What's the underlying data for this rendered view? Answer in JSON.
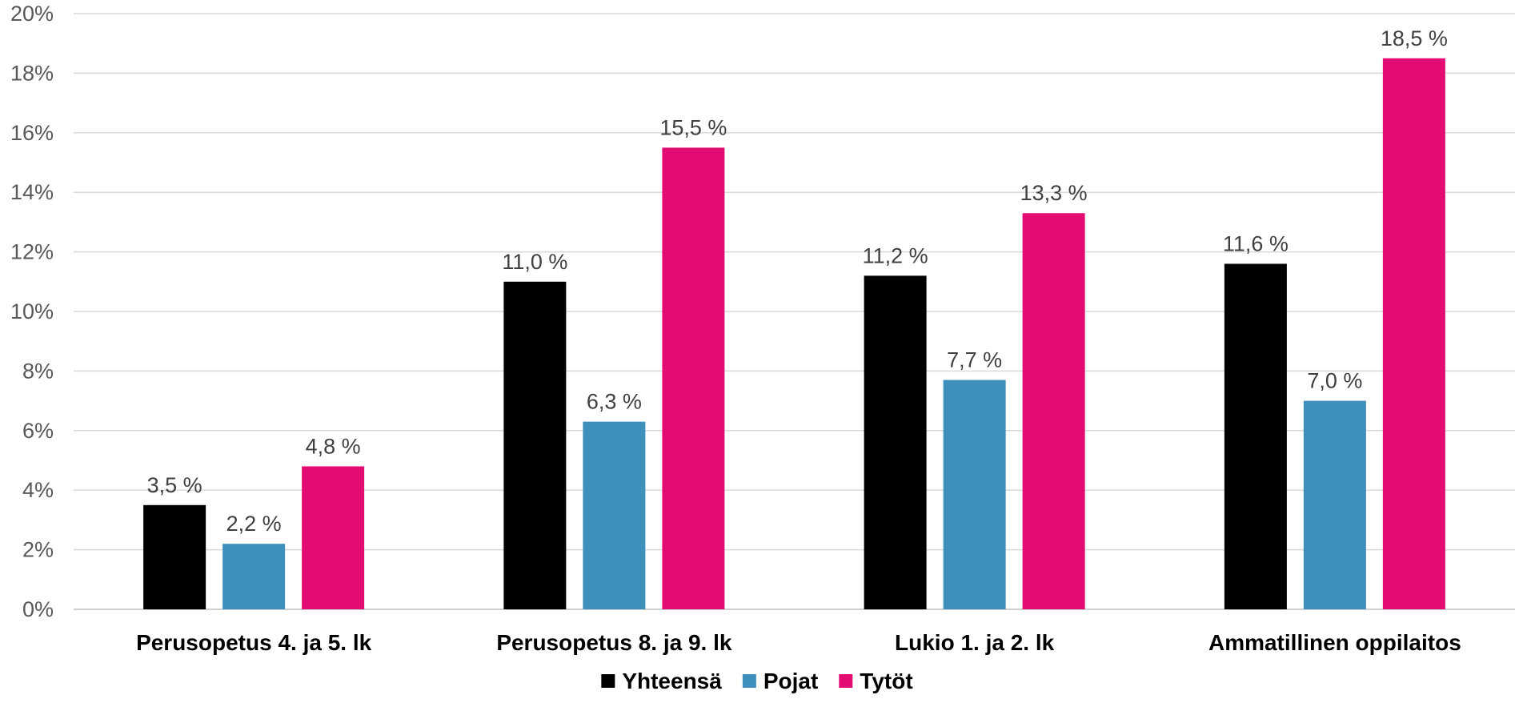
{
  "chart_data": {
    "type": "bar",
    "title": "",
    "xlabel": "",
    "ylabel": "",
    "ylim": [
      0,
      20
    ],
    "y_ticks": [
      "0%",
      "2%",
      "4%",
      "6%",
      "8%",
      "10%",
      "12%",
      "14%",
      "16%",
      "18%",
      "20%"
    ],
    "y_tick_values": [
      0,
      2,
      4,
      6,
      8,
      10,
      12,
      14,
      16,
      18,
      20
    ],
    "grid": true,
    "legend_position": "bottom",
    "categories": [
      "Perusopetus 4. ja 5. lk",
      "Perusopetus 8. ja 9. lk",
      "Lukio 1. ja 2. lk",
      "Ammatillinen oppilaitos"
    ],
    "series": [
      {
        "name": "Yhteensä",
        "color": "#000000",
        "values": [
          3.5,
          11.0,
          11.2,
          11.6
        ],
        "labels": [
          "3,5 %",
          "11,0 %",
          "11,2 %",
          "11,6 %"
        ]
      },
      {
        "name": "Pojat",
        "color": "#3F8FBC",
        "values": [
          2.2,
          6.3,
          7.7,
          7.0
        ],
        "labels": [
          "2,2 %",
          "6,3 %",
          "7,7 %",
          "7,0 %"
        ]
      },
      {
        "name": "Tytöt",
        "color": "#E20C72",
        "values": [
          4.8,
          15.5,
          13.3,
          18.5
        ],
        "labels": [
          "4,8 %",
          "15,5 %",
          "13,3 %",
          "18,5 %"
        ]
      }
    ]
  }
}
